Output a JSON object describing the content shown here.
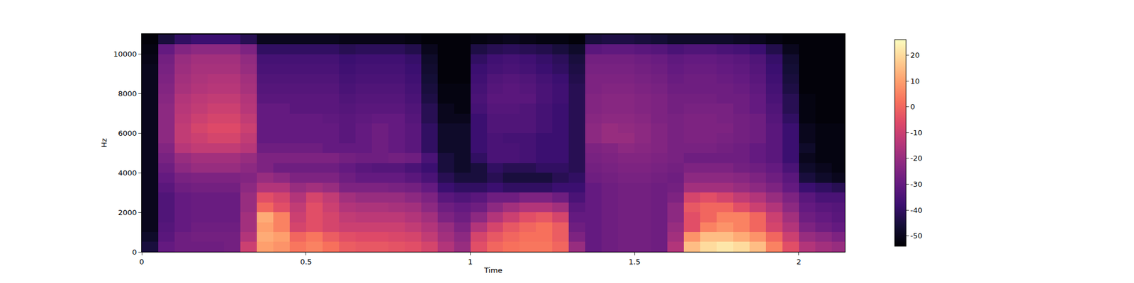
{
  "chart_data": {
    "type": "heatmap",
    "x_label": "Time",
    "y_label": "Hz",
    "xlim": [
      0,
      2.14
    ],
    "xticks": [
      0,
      0.5,
      1,
      1.5,
      2
    ],
    "ylim": [
      0,
      11025
    ],
    "yticks": [
      0,
      2000,
      4000,
      6000,
      8000,
      10000
    ],
    "zlim": [
      -54,
      26
    ],
    "zticks": [
      -50,
      -40,
      -30,
      -20,
      -10,
      0,
      10,
      20
    ],
    "x": [
      0.025,
      0.075,
      0.125,
      0.175,
      0.225,
      0.275,
      0.325,
      0.375,
      0.425,
      0.475,
      0.525,
      0.575,
      0.625,
      0.675,
      0.725,
      0.775,
      0.825,
      0.875,
      0.925,
      0.975,
      1.025,
      1.075,
      1.125,
      1.175,
      1.225,
      1.275,
      1.325,
      1.375,
      1.425,
      1.475,
      1.525,
      1.575,
      1.625,
      1.675,
      1.725,
      1.775,
      1.825,
      1.875,
      1.925,
      1.975,
      2.025,
      2.075,
      2.125
    ],
    "y": [
      250,
      750,
      1250,
      1750,
      2250,
      2750,
      3250,
      3750,
      4250,
      4750,
      5250,
      5750,
      6250,
      6750,
      7250,
      7750,
      8250,
      8750,
      9250,
      9750,
      10250,
      10750
    ],
    "cells": [
      [
        -45,
        -30,
        -28,
        -28,
        -28,
        -27,
        -10,
        10,
        8,
        3,
        5,
        2,
        -2,
        -3,
        -3,
        -4,
        -5,
        -8,
        -15,
        -20,
        -5,
        0,
        2,
        3,
        3,
        0,
        -20,
        -30,
        -28,
        -27,
        -27,
        -28,
        -15,
        15,
        20,
        22,
        20,
        15,
        5,
        -5,
        -15,
        -18,
        -20
      ],
      [
        -48,
        -32,
        -28,
        -27,
        -27,
        -27,
        -15,
        12,
        10,
        0,
        3,
        -2,
        -5,
        -6,
        -6,
        -7,
        -8,
        -12,
        -18,
        -22,
        -8,
        -3,
        0,
        2,
        2,
        -2,
        -25,
        -30,
        -28,
        -27,
        -27,
        -28,
        -18,
        8,
        15,
        15,
        12,
        8,
        0,
        -10,
        -20,
        -22,
        -25
      ],
      [
        -50,
        -33,
        -30,
        -28,
        -28,
        -28,
        -18,
        10,
        5,
        -8,
        -5,
        -8,
        -10,
        -10,
        -10,
        -10,
        -12,
        -15,
        -20,
        -25,
        -15,
        -8,
        -3,
        0,
        2,
        -2,
        -28,
        -30,
        -28,
        -27,
        -27,
        -28,
        -20,
        -5,
        5,
        8,
        5,
        0,
        -8,
        -15,
        -25,
        -28,
        -30
      ],
      [
        -50,
        -34,
        -30,
        -29,
        -29,
        -29,
        -18,
        12,
        5,
        -10,
        -5,
        -8,
        -12,
        -13,
        -13,
        -13,
        -15,
        -18,
        -25,
        -28,
        -22,
        -15,
        -10,
        -5,
        -3,
        -8,
        -30,
        -30,
        -28,
        -27,
        -27,
        -28,
        -22,
        -5,
        0,
        5,
        5,
        0,
        -10,
        -18,
        -28,
        -30,
        -32
      ],
      [
        -50,
        -34,
        -30,
        -29,
        -29,
        -29,
        -20,
        0,
        -5,
        -12,
        -5,
        -10,
        -15,
        -16,
        -16,
        -17,
        -18,
        -22,
        -28,
        -30,
        -28,
        -22,
        -18,
        -15,
        -15,
        -18,
        -32,
        -30,
        -28,
        -27,
        -27,
        -28,
        -22,
        -3,
        0,
        0,
        -5,
        -10,
        -15,
        -22,
        -30,
        -32,
        -33
      ],
      [
        -50,
        -34,
        -30,
        -29,
        -29,
        -29,
        -20,
        -5,
        -8,
        -15,
        -8,
        -12,
        -18,
        -20,
        -20,
        -20,
        -22,
        -25,
        -32,
        -34,
        -32,
        -28,
        -28,
        -25,
        -25,
        -28,
        -35,
        -30,
        -28,
        -27,
        -27,
        -28,
        -25,
        -8,
        -5,
        -8,
        -12,
        -15,
        -20,
        -25,
        -32,
        -35,
        -35
      ],
      [
        -50,
        -32,
        -28,
        -27,
        -27,
        -27,
        -22,
        -15,
        -15,
        -20,
        -18,
        -20,
        -25,
        -25,
        -25,
        -26,
        -27,
        -30,
        -38,
        -40,
        -40,
        -38,
        -40,
        -40,
        -40,
        -38,
        -38,
        -30,
        -28,
        -27,
        -27,
        -28,
        -27,
        -18,
        -18,
        -18,
        -20,
        -22,
        -25,
        -30,
        -38,
        -40,
        -42
      ],
      [
        -50,
        -30,
        -26,
        -25,
        -25,
        -25,
        -24,
        -20,
        -22,
        -25,
        -25,
        -25,
        -28,
        -30,
        -30,
        -30,
        -32,
        -35,
        -42,
        -45,
        -45,
        -42,
        -45,
        -45,
        -45,
        -42,
        -40,
        -28,
        -27,
        -26,
        -26,
        -27,
        -28,
        -22,
        -22,
        -22,
        -23,
        -25,
        -28,
        -32,
        -45,
        -48,
        -50
      ],
      [
        -50,
        -28,
        -22,
        -20,
        -20,
        -20,
        -22,
        -25,
        -28,
        -28,
        -28,
        -28,
        -30,
        -32,
        -33,
        -33,
        -35,
        -38,
        -45,
        -48,
        -45,
        -40,
        -42,
        -42,
        -40,
        -40,
        -42,
        -27,
        -26,
        -25,
        -25,
        -26,
        -27,
        -25,
        -25,
        -25,
        -27,
        -28,
        -30,
        -35,
        -48,
        -50,
        -52
      ],
      [
        -50,
        -26,
        -20,
        -18,
        -18,
        -18,
        -20,
        -25,
        -25,
        -25,
        -25,
        -25,
        -27,
        -28,
        -28,
        -27,
        -28,
        -35,
        -45,
        -48,
        -40,
        -35,
        -35,
        -36,
        -38,
        -38,
        -42,
        -26,
        -25,
        -24,
        -24,
        -25,
        -26,
        -28,
        -28,
        -28,
        -28,
        -30,
        -32,
        -38,
        -50,
        -52,
        -52
      ],
      [
        -50,
        -24,
        -14,
        -12,
        -12,
        -12,
        -14,
        -28,
        -28,
        -28,
        -28,
        -30,
        -30,
        -30,
        -28,
        -30,
        -32,
        -40,
        -48,
        -48,
        -38,
        -35,
        -35,
        -36,
        -38,
        -38,
        -42,
        -25,
        -24,
        -22,
        -23,
        -24,
        -26,
        -26,
        -26,
        -27,
        -28,
        -30,
        -32,
        -38,
        -48,
        -52,
        -52
      ],
      [
        -50,
        -22,
        -12,
        -10,
        -8,
        -8,
        -12,
        -30,
        -30,
        -30,
        -30,
        -30,
        -32,
        -30,
        -28,
        -30,
        -32,
        -40,
        -48,
        -48,
        -38,
        -35,
        -36,
        -36,
        -38,
        -38,
        -42,
        -22,
        -20,
        -20,
        -22,
        -24,
        -26,
        -25,
        -25,
        -26,
        -27,
        -28,
        -32,
        -38,
        -50,
        -52,
        -52
      ],
      [
        -50,
        -22,
        -12,
        -8,
        -6,
        -6,
        -10,
        -30,
        -30,
        -30,
        -30,
        -30,
        -32,
        -30,
        -28,
        -30,
        -32,
        -40,
        -48,
        -48,
        -38,
        -34,
        -34,
        -34,
        -36,
        -38,
        -42,
        -22,
        -20,
        -21,
        -22,
        -24,
        -26,
        -25,
        -25,
        -25,
        -27,
        -28,
        -32,
        -38,
        -50,
        -52,
        -52
      ],
      [
        -50,
        -22,
        -13,
        -10,
        -8,
        -8,
        -12,
        -30,
        -30,
        -30,
        -30,
        -31,
        -32,
        -31,
        -30,
        -30,
        -33,
        -42,
        -50,
        -50,
        -38,
        -34,
        -34,
        -34,
        -36,
        -38,
        -42,
        -23,
        -22,
        -22,
        -23,
        -25,
        -26,
        -25,
        -25,
        -26,
        -27,
        -28,
        -33,
        -40,
        -52,
        -53,
        -53
      ],
      [
        -50,
        -22,
        -14,
        -12,
        -10,
        -10,
        -14,
        -30,
        -30,
        -32,
        -32,
        -32,
        -33,
        -32,
        -32,
        -32,
        -34,
        -42,
        -50,
        -52,
        -36,
        -33,
        -33,
        -34,
        -36,
        -38,
        -42,
        -24,
        -23,
        -23,
        -24,
        -25,
        -27,
        -26,
        -26,
        -26,
        -28,
        -30,
        -34,
        -42,
        -52,
        -53,
        -53
      ],
      [
        -50,
        -23,
        -15,
        -13,
        -12,
        -12,
        -15,
        -32,
        -32,
        -32,
        -32,
        -32,
        -34,
        -33,
        -33,
        -33,
        -35,
        -44,
        -52,
        -52,
        -35,
        -32,
        -32,
        -32,
        -35,
        -37,
        -42,
        -24,
        -23,
        -23,
        -24,
        -25,
        -27,
        -27,
        -27,
        -28,
        -28,
        -30,
        -35,
        -42,
        -52,
        -53,
        -53
      ],
      [
        -50,
        -24,
        -17,
        -15,
        -14,
        -14,
        -17,
        -33,
        -33,
        -33,
        -33,
        -33,
        -35,
        -34,
        -34,
        -34,
        -36,
        -45,
        -52,
        -52,
        -36,
        -33,
        -32,
        -33,
        -35,
        -37,
        -42,
        -25,
        -24,
        -24,
        -25,
        -26,
        -28,
        -28,
        -28,
        -28,
        -29,
        -31,
        -36,
        -44,
        -53,
        -53,
        -53
      ],
      [
        -50,
        -25,
        -18,
        -16,
        -15,
        -15,
        -18,
        -34,
        -34,
        -34,
        -34,
        -34,
        -36,
        -35,
        -35,
        -35,
        -37,
        -46,
        -53,
        -53,
        -37,
        -34,
        -33,
        -34,
        -36,
        -38,
        -43,
        -25,
        -25,
        -25,
        -26,
        -27,
        -29,
        -28,
        -28,
        -29,
        -30,
        -32,
        -37,
        -45,
        -53,
        -53,
        -53
      ],
      [
        -50,
        -26,
        -19,
        -17,
        -17,
        -17,
        -20,
        -35,
        -35,
        -35,
        -35,
        -35,
        -37,
        -36,
        -36,
        -36,
        -38,
        -47,
        -53,
        -53,
        -38,
        -36,
        -35,
        -36,
        -38,
        -40,
        -44,
        -26,
        -26,
        -26,
        -27,
        -28,
        -30,
        -29,
        -29,
        -30,
        -31,
        -33,
        -38,
        -46,
        -53,
        -53,
        -53
      ],
      [
        -51,
        -27,
        -20,
        -18,
        -18,
        -18,
        -21,
        -36,
        -36,
        -36,
        -36,
        -36,
        -38,
        -37,
        -37,
        -37,
        -39,
        -48,
        -53,
        -53,
        -40,
        -37,
        -36,
        -37,
        -39,
        -41,
        -45,
        -27,
        -27,
        -27,
        -28,
        -29,
        -31,
        -30,
        -30,
        -31,
        -32,
        -34,
        -39,
        -47,
        -53,
        -53,
        -53
      ],
      [
        -52,
        -30,
        -24,
        -22,
        -22,
        -22,
        -25,
        -40,
        -40,
        -40,
        -40,
        -40,
        -42,
        -41,
        -41,
        -41,
        -43,
        -50,
        -53,
        -53,
        -44,
        -42,
        -41,
        -42,
        -43,
        -45,
        -48,
        -32,
        -31,
        -31,
        -32,
        -33,
        -35,
        -34,
        -34,
        -35,
        -36,
        -38,
        -43,
        -50,
        -53,
        -53,
        -53
      ],
      [
        -53,
        -45,
        -40,
        -38,
        -38,
        -38,
        -42,
        -50,
        -50,
        -50,
        -50,
        -50,
        -51,
        -51,
        -51,
        -51,
        -52,
        -53,
        -53,
        -53,
        -52,
        -51,
        -50,
        -51,
        -52,
        -52,
        -53,
        -45,
        -44,
        -44,
        -45,
        -46,
        -48,
        -48,
        -48,
        -48,
        -49,
        -50,
        -52,
        -53,
        -53,
        -53,
        -53
      ]
    ]
  }
}
